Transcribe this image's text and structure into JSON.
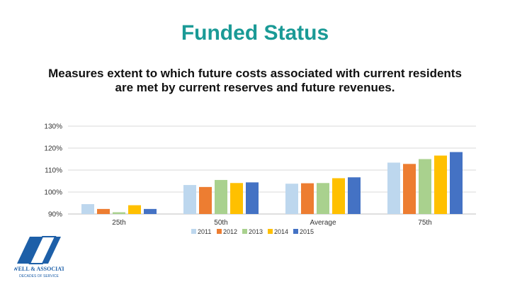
{
  "slide": {
    "title": "Funded Status",
    "subtitle": "Measures extent to which future costs associated with current residents are met by current reserves and future revenues."
  },
  "logo": {
    "name": "A.V. POWELL & ASSOCIATES LLC",
    "tagline": "DECADES OF SERVICE",
    "mark": "AVP"
  },
  "chart_data": {
    "type": "bar",
    "categories": [
      "25th",
      "50th",
      "Average",
      "75th"
    ],
    "series": [
      {
        "name": "2011",
        "color": "#bdd7ee",
        "values": [
          94.5,
          103.2,
          103.8,
          113.4
        ]
      },
      {
        "name": "2012",
        "color": "#ed7d31",
        "values": [
          92.3,
          102.3,
          104.0,
          112.8
        ]
      },
      {
        "name": "2013",
        "color": "#a9d18e",
        "values": [
          90.8,
          105.5,
          104.1,
          115.0
        ]
      },
      {
        "name": "2014",
        "color": "#ffc000",
        "values": [
          94.0,
          104.1,
          106.3,
          116.6
        ]
      },
      {
        "name": "2015",
        "color": "#4472c4",
        "values": [
          92.3,
          104.4,
          106.7,
          118.2
        ]
      }
    ],
    "ylim": [
      90,
      130
    ],
    "yticks": [
      "90%",
      "100%",
      "110%",
      "120%",
      "130%"
    ],
    "grid": true,
    "legend": "bottom"
  }
}
